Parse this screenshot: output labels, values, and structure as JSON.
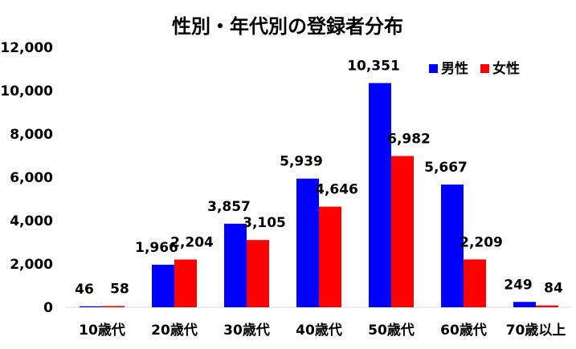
{
  "chart_data": {
    "type": "bar",
    "title": "性別・年代別の登録者分布",
    "categories": [
      "10歳代",
      "20歳代",
      "30歳代",
      "40歳代",
      "50歳代",
      "60歳代",
      "70歳以上"
    ],
    "series": [
      {
        "name": "男性",
        "color": "#0000FF",
        "values": [
          46,
          1966,
          3857,
          5939,
          10351,
          5667,
          249
        ]
      },
      {
        "name": "女性",
        "color": "#FF0000",
        "values": [
          58,
          2204,
          3105,
          4646,
          6982,
          2209,
          84
        ]
      }
    ],
    "ylim": [
      0,
      12000
    ],
    "yticks": [
      "0",
      "2,000",
      "4,000",
      "6,000",
      "8,000",
      "10,000",
      "12,000"
    ],
    "data_labels": [
      [
        "46",
        "1,966",
        "3,857",
        "5,939",
        "10,351",
        "5,667",
        "249"
      ],
      [
        "58",
        "2,204",
        "3,105",
        "4,646",
        "6,982",
        "2,209",
        "84"
      ]
    ],
    "grid": false,
    "legend_position": "top-right"
  }
}
